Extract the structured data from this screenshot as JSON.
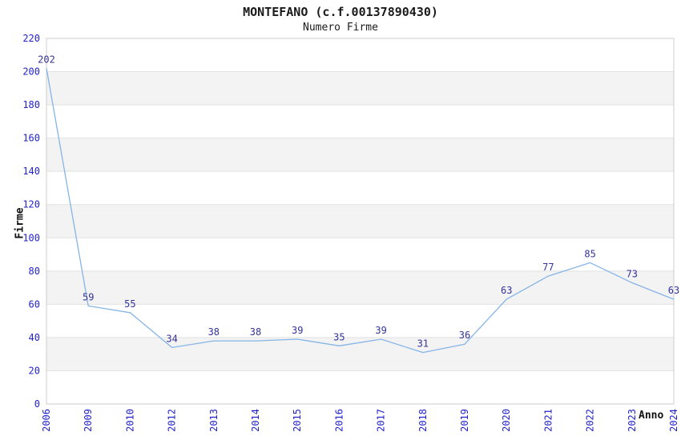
{
  "chart_data": {
    "type": "line",
    "title": "MONTEFANO (c.f.00137890430)",
    "subtitle": "Numero Firme",
    "xlabel": "Anno",
    "ylabel": "Firme",
    "categories": [
      "2006",
      "2009",
      "2010",
      "2012",
      "2013",
      "2014",
      "2015",
      "2016",
      "2017",
      "2018",
      "2019",
      "2020",
      "2021",
      "2022",
      "2023",
      "2024"
    ],
    "values": [
      202,
      59,
      55,
      34,
      38,
      38,
      39,
      35,
      39,
      31,
      36,
      63,
      77,
      85,
      73,
      63
    ],
    "ylim": [
      0,
      220
    ],
    "ytick_step": 20,
    "legend": "none",
    "grid": "alternating-horizontal-bands",
    "colors": {
      "line": "#85b4e6",
      "tick_label": "#2222cc",
      "data_label": "#333399",
      "band_fill": "#f3f3f3",
      "gridline": "#e2e2e2",
      "plot_border": "#cccccc"
    }
  }
}
